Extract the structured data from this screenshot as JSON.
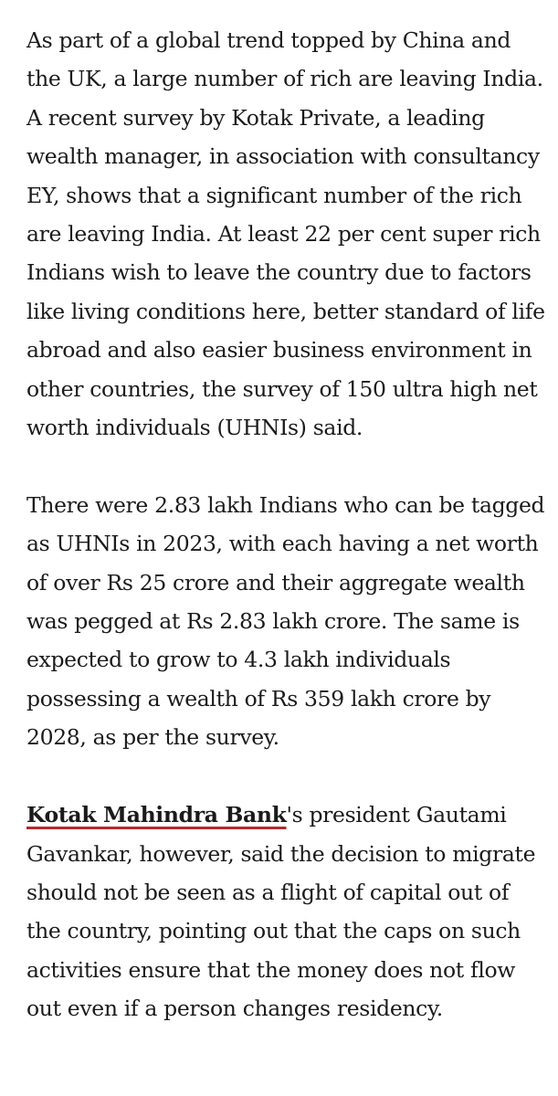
{
  "article": {
    "paragraph_1": "As part of a global trend topped by China and the UK, a large number of rich are leaving India. A recent survey by Kotak Private, a leading wealth manager, in association with consultancy EY, shows that a significant number of the rich are leaving India. At least 22 per cent super rich Indians wish to leave the country due to factors like living conditions here, better standard of life abroad and also easier business environment in other countries, the survey of 150 ultra high net worth individuals (UHNIs) said.",
    "paragraph_2": "There were 2.83 lakh Indians who can be tagged as UHNIs in 2023, with each having a net worth of over Rs 25 crore and their aggregate wealth was pegged at Rs 2.83 lakh crore. The same is expected to grow to 4.3 lakh individuals possessing a wealth of Rs 359 lakh crore by 2028, as per the survey.",
    "paragraph_3_link": "Kotak Mahindra Bank",
    "paragraph_3_rest": "'s president Gautami Gavankar, however, said the decision to migrate should not be seen as a flight of capital out of the country, pointing out that the caps on such activities ensure that the money does not flow out even if a person changes residency."
  },
  "colors": {
    "text": "#1a1a1a",
    "link_underline": "#b5292c",
    "background": "#ffffff"
  }
}
